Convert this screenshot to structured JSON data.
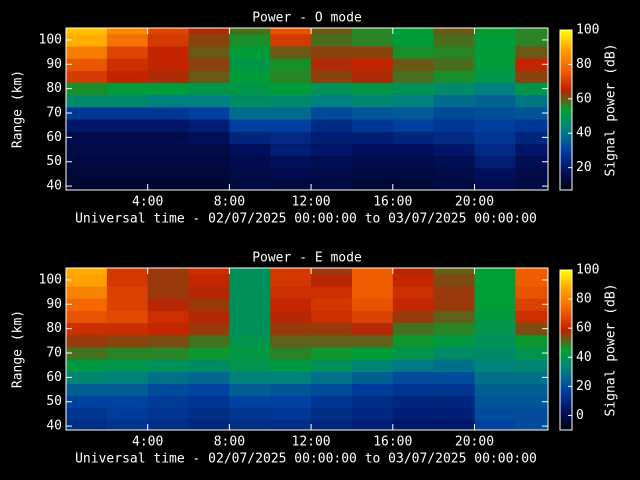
{
  "chart_data": [
    {
      "type": "heatmap",
      "title": "Power - O mode",
      "xlabel": "Universal time - 02/07/2025 00:00:00 to 03/07/2025 00:00:00",
      "ylabel": "Range (km)",
      "colorbar_label": "Signal power (dB)",
      "x": [
        0,
        2,
        4,
        6,
        8,
        10,
        12,
        14,
        16,
        18,
        20,
        22,
        24
      ],
      "y": [
        37.5,
        42.5,
        47.5,
        52.5,
        57.5,
        62.5,
        67.5,
        72.5,
        77.5,
        82.5,
        87.5,
        92.5,
        97.5,
        102.5,
        107.5
      ],
      "xlim": [
        0,
        23.6
      ],
      "ylim": [
        38.4,
        104.9
      ],
      "xticks": [
        {
          "value": 4,
          "label": "4:00"
        },
        {
          "value": 8,
          "label": "8:00"
        },
        {
          "value": 12,
          "label": "12:00"
        },
        {
          "value": 16,
          "label": "16:00"
        },
        {
          "value": 20,
          "label": "20:00"
        }
      ],
      "yticks": [
        40,
        50,
        60,
        70,
        80,
        90,
        100
      ],
      "clim": [
        7,
        100
      ],
      "cticks": [
        20,
        40,
        60,
        80,
        100
      ],
      "colorscale": [
        "#000010",
        "#001060",
        "#0040a0",
        "#008080",
        "#00a030",
        "#c02000",
        "#f06000",
        "#ffa000",
        "#ffff00"
      ],
      "z": [
        [
          12,
          12,
          12,
          12,
          14,
          14,
          14,
          13,
          13,
          14,
          16,
          14
        ],
        [
          13,
          13,
          13,
          13,
          15,
          16,
          15,
          14,
          14,
          15,
          18,
          15
        ],
        [
          14,
          14,
          14,
          14,
          16,
          18,
          17,
          16,
          16,
          17,
          22,
          17
        ],
        [
          15,
          15,
          15,
          15,
          18,
          22,
          20,
          18,
          18,
          20,
          25,
          20
        ],
        [
          16,
          16,
          16,
          18,
          24,
          25,
          22,
          22,
          24,
          25,
          28,
          24
        ],
        [
          20,
          20,
          20,
          22,
          30,
          30,
          25,
          28,
          30,
          28,
          30,
          28
        ],
        [
          28,
          28,
          28,
          30,
          38,
          38,
          32,
          34,
          35,
          32,
          33,
          34
        ],
        [
          45,
          45,
          42,
          42,
          46,
          45,
          42,
          44,
          42,
          38,
          36,
          40
        ],
        [
          55,
          52,
          52,
          50,
          50,
          52,
          48,
          50,
          48,
          45,
          42,
          50
        ],
        [
          70,
          66,
          64,
          60,
          52,
          56,
          62,
          64,
          58,
          55,
          50,
          62
        ],
        [
          75,
          68,
          66,
          62,
          50,
          55,
          64,
          66,
          60,
          58,
          52,
          66
        ],
        [
          82,
          72,
          66,
          60,
          52,
          60,
          62,
          62,
          55,
          56,
          52,
          60
        ],
        [
          90,
          80,
          70,
          62,
          55,
          70,
          58,
          56,
          52,
          58,
          52,
          56
        ],
        [
          92,
          84,
          72,
          64,
          58,
          74,
          60,
          56,
          52,
          60,
          54,
          56
        ]
      ]
    },
    {
      "type": "heatmap",
      "title": "Power - E mode",
      "xlabel": "Universal time - 02/07/2025 00:00:00 to 03/07/2025 00:00:00",
      "ylabel": "Range (km)",
      "colorbar_label": "Signal power (dB)",
      "x": [
        0,
        2,
        4,
        6,
        8,
        10,
        12,
        14,
        16,
        18,
        20,
        22,
        24
      ],
      "y": [
        37.5,
        42.5,
        47.5,
        52.5,
        57.5,
        62.5,
        67.5,
        72.5,
        77.5,
        82.5,
        87.5,
        92.5,
        97.5,
        102.5,
        107.5
      ],
      "xlim": [
        0,
        23.6
      ],
      "ylim": [
        38.4,
        104.9
      ],
      "xticks": [
        {
          "value": 4,
          "label": "4:00"
        },
        {
          "value": 8,
          "label": "8:00"
        },
        {
          "value": 12,
          "label": "12:00"
        },
        {
          "value": 16,
          "label": "16:00"
        },
        {
          "value": 20,
          "label": "20:00"
        }
      ],
      "yticks": [
        40,
        50,
        60,
        70,
        80,
        90,
        100
      ],
      "clim": [
        -10,
        100
      ],
      "cticks": [
        0,
        20,
        40,
        60,
        80,
        100
      ],
      "colorscale": [
        "#000010",
        "#001060",
        "#0040a0",
        "#008080",
        "#00a030",
        "#c02000",
        "#f06000",
        "#ffa000",
        "#ffff00"
      ],
      "z": [
        [
          12,
          14,
          12,
          10,
          12,
          12,
          10,
          8,
          6,
          6,
          18,
          20
        ],
        [
          14,
          16,
          14,
          12,
          14,
          15,
          12,
          10,
          8,
          8,
          20,
          20
        ],
        [
          18,
          18,
          16,
          14,
          18,
          18,
          14,
          12,
          10,
          10,
          22,
          22
        ],
        [
          24,
          24,
          20,
          18,
          24,
          22,
          20,
          16,
          14,
          14,
          24,
          24
        ],
        [
          34,
          32,
          28,
          26,
          32,
          32,
          28,
          24,
          20,
          20,
          28,
          28
        ],
        [
          42,
          40,
          38,
          36,
          40,
          42,
          38,
          34,
          30,
          28,
          32,
          34
        ],
        [
          50,
          48,
          48,
          46,
          42,
          48,
          46,
          44,
          40,
          36,
          36,
          40
        ],
        [
          56,
          55,
          54,
          50,
          40,
          52,
          52,
          52,
          46,
          42,
          38,
          46
        ],
        [
          62,
          62,
          60,
          56,
          38,
          56,
          56,
          58,
          50,
          48,
          40,
          54
        ],
        [
          70,
          68,
          62,
          58,
          38,
          58,
          62,
          66,
          56,
          52,
          42,
          62
        ],
        [
          74,
          66,
          58,
          56,
          38,
          60,
          64,
          70,
          60,
          56,
          44,
          66
        ],
        [
          80,
          66,
          56,
          58,
          38,
          62,
          62,
          72,
          62,
          56,
          44,
          70
        ],
        [
          86,
          64,
          56,
          60,
          38,
          64,
          58,
          72,
          60,
          54,
          44,
          72
        ],
        [
          88,
          64,
          56,
          62,
          38,
          64,
          56,
          72,
          58,
          52,
          44,
          72
        ]
      ]
    }
  ]
}
